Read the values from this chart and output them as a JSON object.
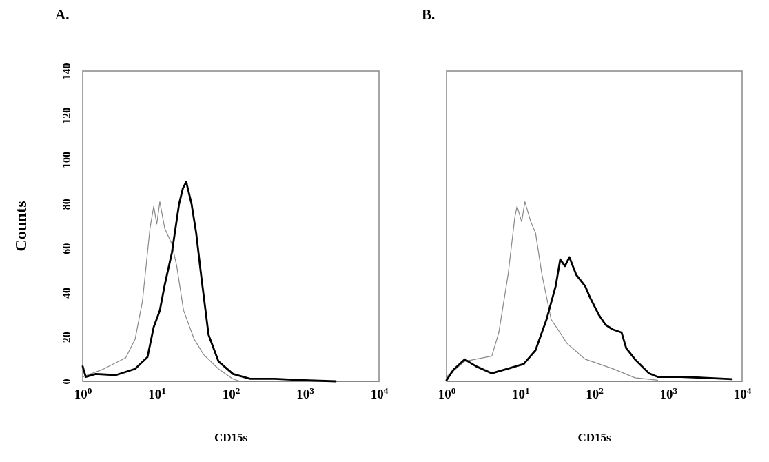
{
  "chart_data": [
    {
      "type": "line",
      "title": "A.",
      "xlabel": "CD15s",
      "ylabel": "Counts",
      "log": "x",
      "xlim": [
        1,
        10000
      ],
      "ylim": [
        0,
        140
      ],
      "xticks": [
        {
          "value": 1,
          "label": "10$^{0}$"
        },
        {
          "value": 10,
          "label": "10$^{1}$"
        },
        {
          "value": 100,
          "label": "10$^{2}$"
        },
        {
          "value": 1000,
          "label": "10$^{3}$"
        },
        {
          "value": 10000,
          "label": "10$^{4}$"
        }
      ],
      "yticks": [
        0,
        20,
        40,
        60,
        80,
        100,
        120,
        140
      ],
      "grid": false,
      "series": [
        {
          "color": "#888888",
          "x": [
            1,
            1.9,
            3.8,
            5.1,
            6.4,
            8.1,
            9.1,
            10,
            11,
            12.8,
            16,
            18.6,
            23,
            32,
            43,
            68,
            107,
            135
          ],
          "values": [
            2,
            5.5,
            10.6,
            19,
            36,
            69,
            79,
            71,
            81,
            69,
            62,
            52,
            32,
            19,
            12,
            5.6,
            1,
            0
          ]
        },
        {
          "color": "#000000",
          "x": [
            1,
            1.1,
            1.5,
            2.8,
            5.1,
            7.5,
            9.1,
            11,
            12.8,
            16,
            20,
            22.5,
            25,
            29.5,
            34,
            40,
            50,
            68,
            107,
            182,
            390,
            830,
            2600
          ],
          "values": [
            6.7,
            2,
            3.3,
            2.8,
            5.6,
            11,
            24.5,
            32,
            43.5,
            58,
            80,
            87,
            90,
            80,
            67,
            47,
            21,
            9,
            3.3,
            1.1,
            1.1,
            0.6,
            0
          ]
        }
      ]
    },
    {
      "type": "line",
      "title": "B.",
      "xlabel": "CD15s",
      "log": "x",
      "xlim": [
        1,
        10000
      ],
      "ylim": [
        0,
        140
      ],
      "tick_labels": "x",
      "xticks": [
        {
          "value": 1,
          "label": "10$^{0}$"
        },
        {
          "value": 10,
          "label": "10$^{1}$"
        },
        {
          "value": 100,
          "label": "10$^{2}$"
        },
        {
          "value": 1000,
          "label": "10$^{3}$"
        },
        {
          "value": 10000,
          "label": "10$^{4}$"
        }
      ],
      "yticks": [
        0,
        20,
        40,
        60,
        80,
        100,
        120,
        140
      ],
      "grid": false,
      "series": [
        {
          "color": "#888888",
          "x": [
            1,
            1.76,
            4.1,
            5.1,
            6.8,
            8.4,
            9,
            10.4,
            11.5,
            13.8,
            16,
            19.6,
            26,
            43,
            75,
            177,
            355,
            720
          ],
          "values": [
            2,
            9,
            11.4,
            22,
            48,
            74,
            79,
            72,
            81,
            72,
            67,
            48,
            28,
            17,
            10,
            5.7,
            1.6,
            0.5
          ]
        },
        {
          "color": "#000000",
          "x": [
            1,
            1.24,
            1.76,
            2.5,
            4.1,
            6.8,
            11.1,
            16,
            22.6,
            30,
            34.6,
            40,
            46,
            57,
            75,
            87,
            115,
            142,
            177,
            234,
            270,
            355,
            550,
            720,
            1480,
            3000,
            7250
          ],
          "values": [
            0.5,
            5.2,
            9.9,
            6.8,
            3.6,
            5.7,
            7.8,
            14,
            28,
            43,
            55,
            52,
            56,
            48,
            43,
            38,
            30,
            25.5,
            23.4,
            22,
            15,
            9.9,
            3.6,
            2,
            2,
            1.6,
            1
          ]
        }
      ]
    }
  ]
}
